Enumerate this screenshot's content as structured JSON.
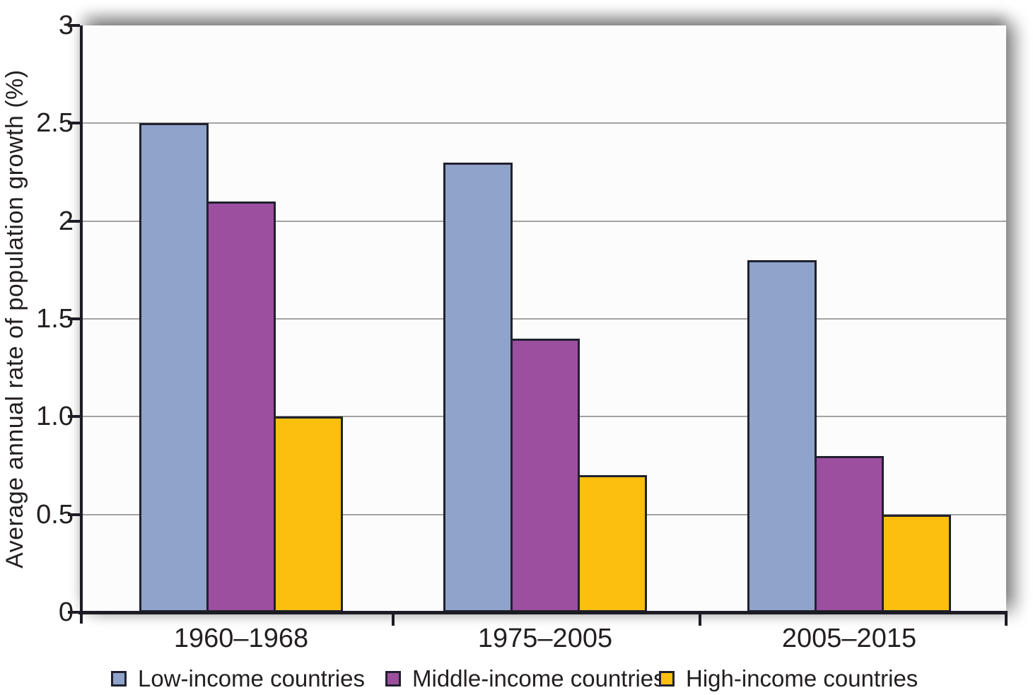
{
  "chart_data": {
    "type": "bar",
    "title": "",
    "xlabel": "",
    "ylabel": "Average annual rate of population growth (%)",
    "ylim": [
      0,
      3
    ],
    "grid": true,
    "legend_position": "bottom",
    "categories": [
      "1960–1968",
      "1975–2005",
      "2005–2015"
    ],
    "series": [
      {
        "name": "Low-income countries",
        "color": "#8FA3CB",
        "values": [
          2.5,
          2.3,
          1.8
        ]
      },
      {
        "name": "Middle-income countries",
        "color": "#9C4F9F",
        "values": [
          2.1,
          1.4,
          0.8
        ]
      },
      {
        "name": "High-income countries",
        "color": "#FCBF0F",
        "values": [
          1.0,
          0.7,
          0.5
        ]
      }
    ],
    "yticks": [
      {
        "value": 3,
        "label": "3"
      },
      {
        "value": 2.5,
        "label": "2.5"
      },
      {
        "value": 2,
        "label": "2"
      },
      {
        "value": 1.5,
        "label": "1.5"
      },
      {
        "value": 1,
        "label": "1.0"
      },
      {
        "value": 0.5,
        "label": "0.5"
      },
      {
        "value": 0,
        "label": "0"
      }
    ]
  },
  "style": {
    "axis_color": "#1c1c24",
    "grid_color": "#a3a3a3",
    "bar_border_color": "#21212e",
    "text_color": "#231f20",
    "plot_background": "#fcfcfd"
  }
}
